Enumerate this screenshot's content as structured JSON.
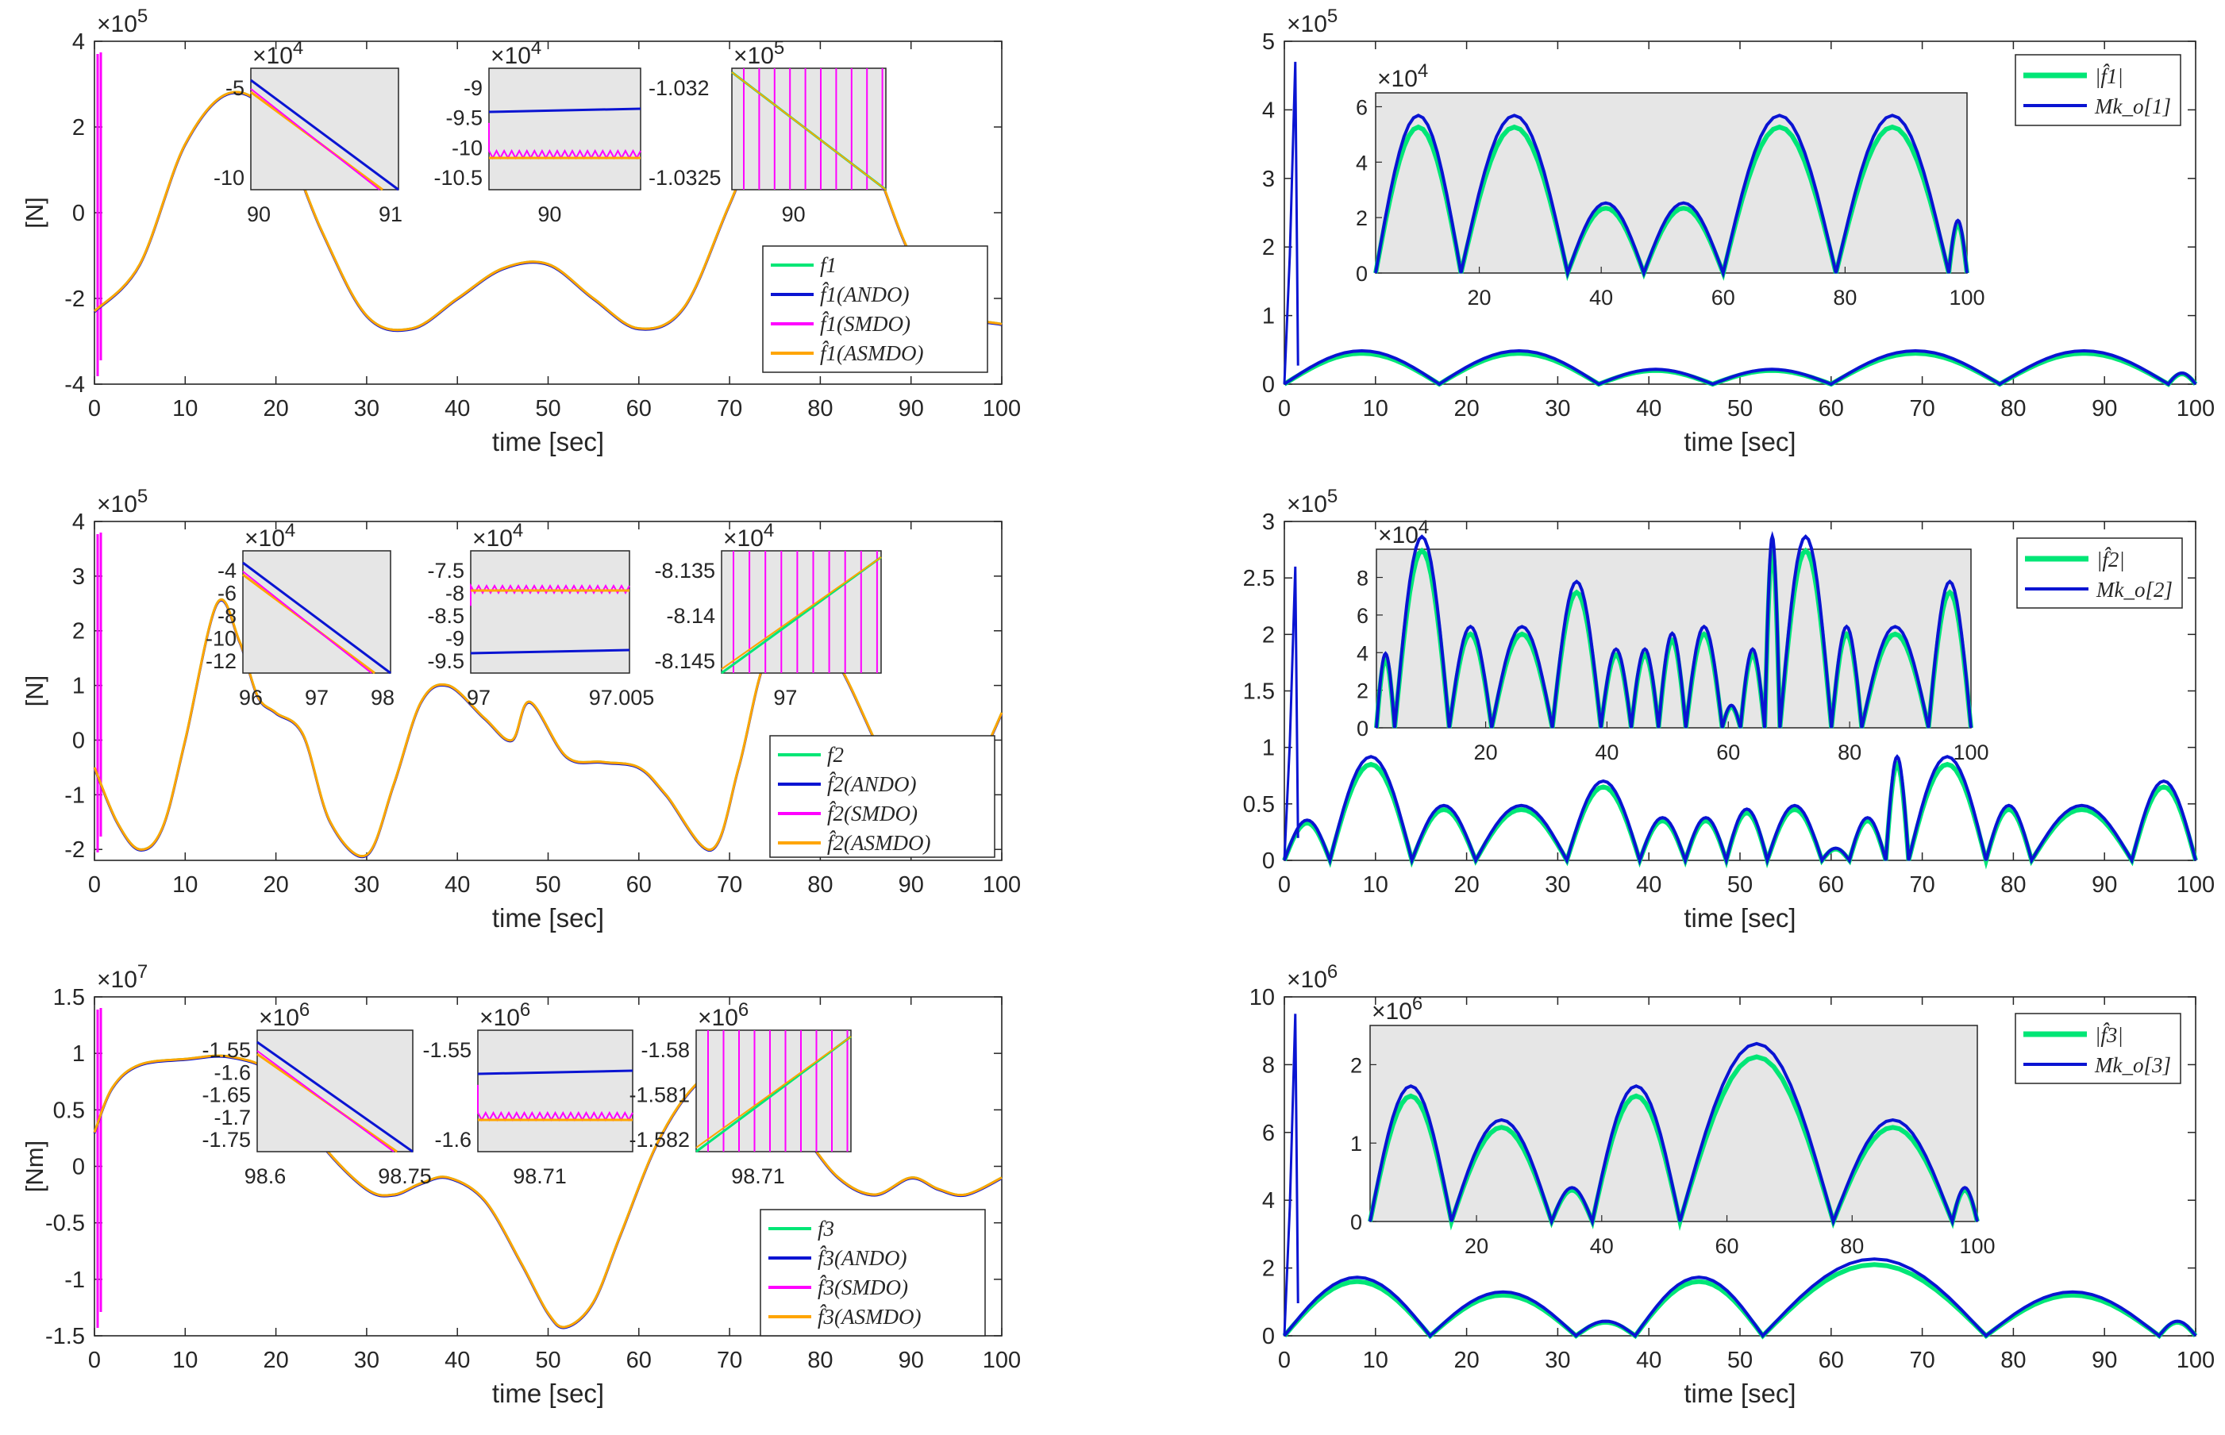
{
  "colors": {
    "green": "#00e676",
    "blue": "#0a14d2",
    "magenta": "#ff00ff",
    "orange": "#ffa500",
    "inset_bg": "#e6e6e6"
  },
  "chart_data": [
    {
      "id": "p1",
      "type": "line",
      "ylabel": "[N]",
      "xlabel": "time [sec]",
      "exponent": "×10^5",
      "exp_base": "×10",
      "exp_power": "5",
      "xlim": [
        0,
        100
      ],
      "ylim": [
        -4,
        4
      ],
      "xticks": [
        "0",
        "10",
        "20",
        "30",
        "40",
        "50",
        "60",
        "70",
        "80",
        "90",
        "100"
      ],
      "yticks": [
        "-4",
        "-2",
        "0",
        "2",
        "4"
      ],
      "legend": [
        "f1",
        "f̂1(ANDO)",
        "f̂1(SMDO)",
        "f̂1(ASMDO)"
      ],
      "legend_sub": "1",
      "series_samples": {
        "x": [
          0,
          5,
          10,
          15,
          20,
          25,
          30,
          35,
          40,
          45,
          50,
          55,
          60,
          65,
          70,
          75,
          80,
          85,
          90,
          95,
          100
        ],
        "y": [
          -2.3,
          -1.2,
          1.6,
          2.8,
          2.1,
          -0.4,
          -2.4,
          -2.7,
          -2.0,
          -1.3,
          -1.2,
          -2.0,
          -2.7,
          -2.2,
          0.2,
          2.6,
          2.8,
          1.6,
          -1.0,
          -2.3,
          -2.6
        ]
      },
      "insets": [
        {
          "exp_base": "×10",
          "exp_power": "4",
          "yticks": [
            "-5",
            "-10"
          ],
          "xticks": [
            "90",
            "91"
          ]
        },
        {
          "exp_base": "×10",
          "exp_power": "4",
          "yticks": [
            "-9",
            "-9.5",
            "-10",
            "-10.5"
          ],
          "right_yticks": [
            "-1.032",
            "-1.0325"
          ],
          "xticks": [
            "90"
          ]
        },
        {
          "exp_base": "×10",
          "exp_power": "5",
          "yticks": [],
          "xticks": [
            "90"
          ]
        }
      ]
    },
    {
      "id": "p2",
      "type": "line",
      "ylabel": "[N]",
      "xlabel": "time [sec]",
      "exp_base": "×10",
      "exp_power": "5",
      "xlim": [
        0,
        100
      ],
      "ylim": [
        -2.2,
        4
      ],
      "xticks": [
        "0",
        "10",
        "20",
        "30",
        "40",
        "50",
        "60",
        "70",
        "80",
        "90",
        "100"
      ],
      "yticks": [
        "-2",
        "-1",
        "0",
        "1",
        "2",
        "3",
        "4"
      ],
      "legend": [
        "f2",
        "f̂2(ANDO)",
        "f̂2(SMDO)",
        "f̂2(ASMDO)"
      ],
      "legend_sub": "2",
      "series_samples": {
        "x": [
          0,
          2.5,
          5,
          7.5,
          10,
          13.5,
          16,
          18,
          20,
          23,
          26,
          30,
          33,
          36,
          39,
          43,
          46,
          48,
          52,
          56,
          60,
          63,
          68,
          71,
          74,
          78,
          82,
          86,
          90,
          93,
          96,
          100
        ],
        "y": [
          -0.5,
          -1.5,
          -2.0,
          -1.6,
          0.0,
          2.5,
          1.8,
          0.8,
          0.5,
          0.1,
          -1.5,
          -2.1,
          -0.8,
          0.7,
          1.0,
          0.4,
          0.0,
          0.7,
          -0.3,
          -0.4,
          -0.5,
          -1.0,
          -2.0,
          -0.5,
          1.5,
          2.3,
          1.4,
          0.0,
          -1.5,
          -2.1,
          -1.0,
          0.5
        ]
      },
      "insets": [
        {
          "exp_base": "×10",
          "exp_power": "4",
          "yticks": [
            "-4",
            "-6",
            "-8",
            "-10",
            "-12"
          ],
          "xticks": [
            "96",
            "97",
            "98"
          ]
        },
        {
          "exp_base": "×10",
          "exp_power": "4",
          "yticks": [
            "-7.5",
            "-8",
            "-8.5",
            "-9",
            "-9.5"
          ],
          "xticks": [
            "97",
            "97.005"
          ]
        },
        {
          "exp_base": "×10",
          "exp_power": "4",
          "yticks": [
            "-8.135",
            "-8.14",
            "-8.145"
          ],
          "xticks": [
            "97"
          ]
        }
      ]
    },
    {
      "id": "p3",
      "type": "line",
      "ylabel": "[Nm]",
      "xlabel": "time [sec]",
      "exp_base": "×10",
      "exp_power": "7",
      "xlim": [
        0,
        100
      ],
      "ylim": [
        -1.5,
        1.5
      ],
      "xticks": [
        "0",
        "10",
        "20",
        "30",
        "40",
        "50",
        "60",
        "70",
        "80",
        "90",
        "100"
      ],
      "yticks": [
        "-1.5",
        "-1",
        "-0.5",
        "0",
        "0.5",
        "1",
        "1.5"
      ],
      "legend": [
        "f3",
        "f̂3(ANDO)",
        "f̂3(SMDO)",
        "f̂3(ASMDO)"
      ],
      "legend_sub": "3",
      "series_samples": {
        "x": [
          0,
          2,
          5,
          10,
          15,
          20,
          25,
          30,
          33,
          36,
          39,
          43,
          47,
          50,
          52,
          55,
          58,
          62,
          66,
          70,
          74,
          78,
          82,
          86,
          90,
          93,
          96,
          100
        ],
        "y": [
          0.3,
          0.7,
          0.9,
          0.95,
          0.97,
          0.8,
          0.2,
          -0.2,
          -0.25,
          -0.15,
          -0.1,
          -0.3,
          -0.85,
          -1.3,
          -1.42,
          -1.2,
          -0.6,
          0.2,
          0.7,
          0.9,
          0.7,
          0.3,
          -0.1,
          -0.25,
          -0.1,
          -0.2,
          -0.25,
          -0.1
        ]
      },
      "insets": [
        {
          "exp_base": "×10",
          "exp_power": "6",
          "yticks": [
            "-1.55",
            "-1.6",
            "-1.65",
            "-1.7",
            "-1.75"
          ],
          "xticks": [
            "98.6",
            "98.75"
          ]
        },
        {
          "exp_base": "×10",
          "exp_power": "6",
          "yticks": [
            "-1.55",
            "-1.6"
          ],
          "xticks": [
            "98.71"
          ]
        },
        {
          "exp_base": "×10",
          "exp_power": "6",
          "yticks": [
            "-1.58",
            "-1.581",
            "-1.582"
          ],
          "xticks": [
            "98.71"
          ]
        }
      ]
    },
    {
      "id": "p4",
      "type": "line",
      "xlabel": "time [sec]",
      "exp_base": "×10",
      "exp_power": "5",
      "xlim": [
        0,
        100
      ],
      "ylim": [
        0,
        5
      ],
      "xticks": [
        "0",
        "10",
        "20",
        "30",
        "40",
        "50",
        "60",
        "70",
        "80",
        "90",
        "100"
      ],
      "yticks": [
        "0",
        "1",
        "2",
        "3",
        "4",
        "5"
      ],
      "legend": [
        "|f̂1|",
        "Mk_o[1]"
      ],
      "legend_sub": "1",
      "zeros": [
        0,
        17,
        34.5,
        47,
        60,
        78.5,
        97,
        100
      ],
      "peaks": [
        0.45,
        0.45,
        0.2,
        0.2,
        0.45,
        0.45,
        0.15
      ],
      "inset": {
        "exp_base": "×10",
        "exp_power": "4",
        "yticks": [
          "0",
          "2",
          "4",
          "6"
        ],
        "xticks": [
          "20",
          "40",
          "60",
          "80",
          "100"
        ],
        "ylim": [
          0,
          6.5
        ],
        "xlim": [
          3,
          100
        ]
      }
    },
    {
      "id": "p5",
      "type": "line",
      "xlabel": "time [sec]",
      "exp_base": "×10",
      "exp_power": "5",
      "xlim": [
        0,
        100
      ],
      "ylim": [
        0,
        3
      ],
      "xticks": [
        "0",
        "10",
        "20",
        "30",
        "40",
        "50",
        "60",
        "70",
        "80",
        "90",
        "100"
      ],
      "yticks": [
        "0",
        "0.5",
        "1",
        "1.5",
        "2",
        "2.5",
        "3"
      ],
      "legend": [
        "|f̂2|",
        "Mk_o[2]"
      ],
      "legend_sub": "2",
      "zeros": [
        0,
        5,
        14,
        21,
        31,
        39,
        44,
        48.5,
        53,
        59,
        62,
        66,
        68.5,
        77,
        82,
        93,
        100
      ],
      "peaks": [
        0.33,
        0.85,
        0.45,
        0.45,
        0.65,
        0.35,
        0.35,
        0.42,
        0.45,
        0.1,
        0.35,
        0.85,
        0.85,
        0.45,
        0.45,
        0.65
      ],
      "inset": {
        "exp_base": "×10",
        "exp_power": "4",
        "yticks": [
          "0",
          "2",
          "4",
          "6",
          "8"
        ],
        "xticks": [
          "20",
          "40",
          "60",
          "80",
          "100"
        ],
        "ylim": [
          0,
          9.5
        ],
        "xlim": [
          2,
          100
        ]
      }
    },
    {
      "id": "p6",
      "type": "line",
      "xlabel": "time [sec]",
      "exp_base": "×10",
      "exp_power": "6",
      "xlim": [
        0,
        100
      ],
      "ylim": [
        0,
        10
      ],
      "xticks": [
        "0",
        "10",
        "20",
        "30",
        "40",
        "50",
        "60",
        "70",
        "80",
        "90",
        "100"
      ],
      "yticks": [
        "0",
        "2",
        "4",
        "6",
        "8",
        "10"
      ],
      "legend": [
        "|f̂3|",
        "Mk_o[3]"
      ],
      "legend_sub": "3",
      "zeros": [
        0,
        16,
        32,
        38.5,
        52.5,
        77,
        96,
        100
      ],
      "peaks": [
        1.6,
        1.2,
        0.4,
        1.6,
        2.1,
        1.2,
        0.4
      ],
      "inset": {
        "exp_base": "×10",
        "exp_power": "6",
        "yticks": [
          "0",
          "1",
          "2"
        ],
        "xticks": [
          "20",
          "40",
          "60",
          "80",
          "100"
        ],
        "ylim": [
          0,
          2.5
        ],
        "xlim": [
          3,
          100
        ]
      }
    }
  ]
}
